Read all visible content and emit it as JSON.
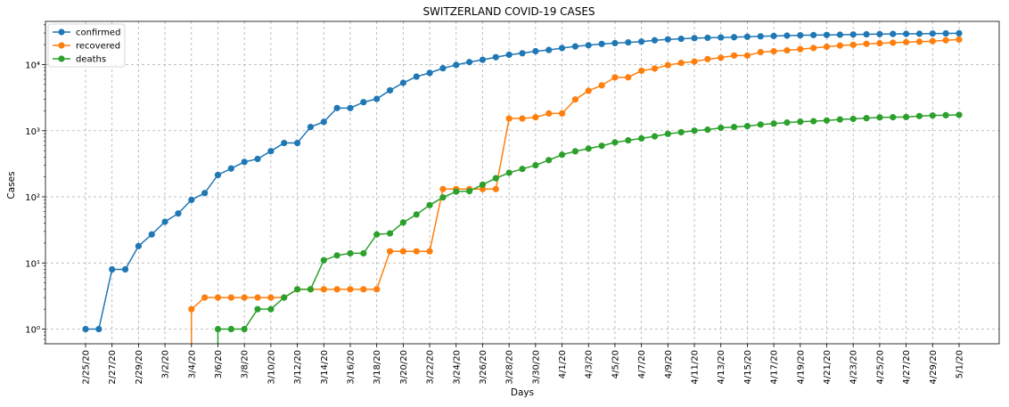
{
  "chart_data": {
    "type": "line",
    "title": "SWITZERLAND COVID-19 CASES",
    "xlabel": "Days",
    "ylabel": "Cases",
    "yscale": "log",
    "ylim": [
      0.6,
      45000
    ],
    "grid": true,
    "legend_position": "top-left",
    "categories": [
      "2/25/20",
      "2/26/20",
      "2/27/20",
      "2/28/20",
      "2/29/20",
      "3/1/20",
      "3/2/20",
      "3/3/20",
      "3/4/20",
      "3/5/20",
      "3/6/20",
      "3/7/20",
      "3/8/20",
      "3/9/20",
      "3/10/20",
      "3/11/20",
      "3/12/20",
      "3/13/20",
      "3/14/20",
      "3/15/20",
      "3/16/20",
      "3/17/20",
      "3/18/20",
      "3/19/20",
      "3/20/20",
      "3/21/20",
      "3/22/20",
      "3/23/20",
      "3/24/20",
      "3/25/20",
      "3/26/20",
      "3/27/20",
      "3/28/20",
      "3/29/20",
      "3/30/20",
      "3/31/20",
      "4/1/20",
      "4/2/20",
      "4/3/20",
      "4/4/20",
      "4/5/20",
      "4/6/20",
      "4/7/20",
      "4/8/20",
      "4/9/20",
      "4/10/20",
      "4/11/20",
      "4/12/20",
      "4/13/20",
      "4/14/20",
      "4/15/20",
      "4/16/20",
      "4/17/20",
      "4/18/20",
      "4/19/20",
      "4/20/20",
      "4/21/20",
      "4/22/20",
      "4/23/20",
      "4/24/20",
      "4/25/20",
      "4/26/20",
      "4/27/20",
      "4/28/20",
      "4/29/20",
      "4/30/20",
      "5/1/20"
    ],
    "tick_labels": [
      "2/25/20",
      "2/27/20",
      "2/29/20",
      "3/2/20",
      "3/4/20",
      "3/6/20",
      "3/8/20",
      "3/10/20",
      "3/12/20",
      "3/14/20",
      "3/16/20",
      "3/18/20",
      "3/20/20",
      "3/22/20",
      "3/24/20",
      "3/26/20",
      "3/28/20",
      "3/30/20",
      "4/1/20",
      "4/3/20",
      "4/5/20",
      "4/7/20",
      "4/9/20",
      "4/11/20",
      "4/13/20",
      "4/15/20",
      "4/17/20",
      "4/19/20",
      "4/21/20",
      "4/23/20",
      "4/25/20",
      "4/27/20",
      "4/29/20",
      "5/1/20"
    ],
    "y_ticks": [
      {
        "value": 1,
        "label": "10⁰"
      },
      {
        "value": 10,
        "label": "10¹"
      },
      {
        "value": 100,
        "label": "10²"
      },
      {
        "value": 1000,
        "label": "10³"
      },
      {
        "value": 10000,
        "label": "10⁴"
      }
    ],
    "series": [
      {
        "name": "confirmed",
        "color": "#1f77b4",
        "values": [
          1,
          1,
          8,
          8,
          18,
          27,
          42,
          56,
          90,
          114,
          214,
          268,
          337,
          374,
          491,
          652,
          652,
          1139,
          1359,
          2200,
          2200,
          2700,
          3028,
          4075,
          5294,
          6575,
          7474,
          8795,
          9877,
          10897,
          11811,
          12928,
          14076,
          14829,
          15922,
          16605,
          17768,
          18827,
          19606,
          20505,
          21100,
          21657,
          22253,
          23280,
          24051,
          24551,
          25107,
          25415,
          25688,
          25936,
          26336,
          26732,
          27078,
          27404,
          27740,
          27944,
          28063,
          28268,
          28496,
          28677,
          28894,
          29061,
          29164,
          29264,
          29407,
          29586,
          29705
        ]
      },
      {
        "name": "recovered",
        "color": "#ff7f0e",
        "values": [
          0,
          0,
          0,
          0,
          0,
          0,
          0,
          0,
          2,
          3,
          3,
          3,
          3,
          3,
          3,
          3,
          4,
          4,
          4,
          4,
          4,
          4,
          4,
          15,
          15,
          15,
          15,
          131,
          131,
          131,
          131,
          131,
          1530,
          1530,
          1595,
          1823,
          1823,
          2967,
          4013,
          4846,
          6415,
          6415,
          8056,
          8704,
          9800,
          10600,
          11100,
          12100,
          12700,
          13700,
          13700,
          15400,
          15900,
          16400,
          17100,
          17800,
          18600,
          19400,
          19900,
          20600,
          21000,
          21400,
          21800,
          22200,
          22600,
          23300,
          23900
        ]
      },
      {
        "name": "deaths",
        "color": "#2ca02c",
        "values": [
          0,
          0,
          0,
          0,
          0,
          0,
          0,
          0,
          0,
          0,
          1,
          1,
          1,
          2,
          2,
          3,
          4,
          4,
          11,
          13,
          14,
          14,
          27,
          28,
          41,
          54,
          75,
          98,
          120,
          122,
          153,
          191,
          231,
          264,
          300,
          359,
          433,
          488,
          536,
          591,
          666,
          715,
          765,
          821,
          895,
          948,
          1002,
          1036,
          1106,
          1138,
          1174,
          1239,
          1281,
          1327,
          1368,
          1393,
          1429,
          1478,
          1509,
          1549,
          1589,
          1599,
          1610,
          1665,
          1699,
          1716,
          1737
        ]
      }
    ]
  }
}
